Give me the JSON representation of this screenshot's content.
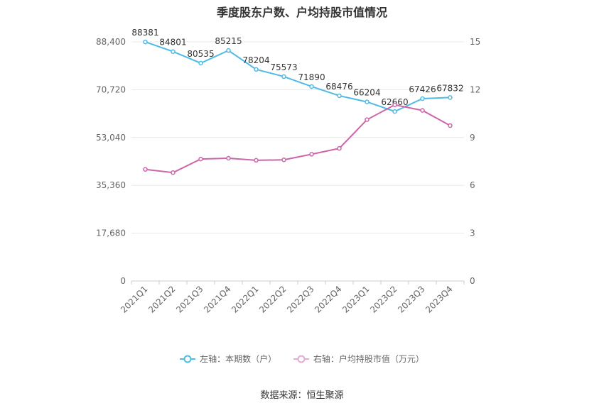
{
  "chart_data": {
    "type": "line",
    "title": "季度股东户数、户均持股市值情况",
    "categories": [
      "2021Q1",
      "2021Q2",
      "2021Q3",
      "2021Q4",
      "2022Q1",
      "2022Q2",
      "2022Q3",
      "2022Q4",
      "2023Q1",
      "2023Q2",
      "2023Q3",
      "2023Q4"
    ],
    "y_left": {
      "ticks": [
        "0",
        "17,680",
        "35,360",
        "53,040",
        "70,720",
        "88,400"
      ],
      "range": [
        0,
        88400
      ]
    },
    "y_right": {
      "ticks": [
        "0",
        "3",
        "6",
        "9",
        "12",
        "15"
      ],
      "range": [
        0,
        15
      ]
    },
    "series": [
      {
        "name": "左轴：本期数（户）",
        "axis": "left",
        "color": "#4dbbe8",
        "values": [
          88381,
          84801,
          80535,
          85215,
          78204,
          75573,
          71890,
          68476,
          66204,
          62660,
          67426,
          67832
        ],
        "labels": [
          "88381",
          "84801",
          "80535",
          "85215",
          "78204",
          "75573",
          "71890",
          "68476",
          "66204",
          "62660",
          "67426",
          "67832"
        ]
      },
      {
        "name": "右轴：户均持股市值（万元）",
        "axis": "right",
        "color": "#cc66aa",
        "values": [
          7.0,
          6.8,
          7.65,
          7.7,
          7.57,
          7.6,
          7.95,
          8.32,
          10.12,
          11.05,
          10.7,
          9.75
        ]
      }
    ],
    "grid": true,
    "legend_position": "bottom"
  },
  "footer": {
    "source": "数据来源：恒生聚源"
  }
}
